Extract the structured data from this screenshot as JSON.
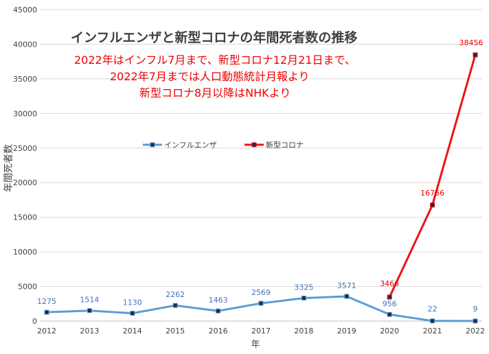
{
  "chart_data": {
    "type": "line",
    "title": "インフルエンザと新型コロナの年間死者数の推移",
    "notes": [
      "2022年はインフル7月まで、新型コロナ12月21日まで、",
      "2022年7月までは人口動態統計月報より",
      "新型コロナ8月以降はNHKより"
    ],
    "xlabel": "年",
    "ylabel": "年間死者数",
    "ylim": [
      0,
      45000
    ],
    "yticks": [
      0,
      5000,
      10000,
      15000,
      20000,
      25000,
      30000,
      35000,
      40000,
      45000
    ],
    "categories": [
      "2012",
      "2013",
      "2014",
      "2015",
      "2016",
      "2017",
      "2018",
      "2019",
      "2020",
      "2021",
      "2022"
    ],
    "grid": true,
    "legend_position": "upper-left-center",
    "series": [
      {
        "name": "インフルエンザ",
        "color": "#5b9bd5",
        "label_color": "#4472c4",
        "values": [
          1275,
          1514,
          1130,
          2262,
          1463,
          2569,
          3325,
          3571,
          956,
          22,
          9
        ]
      },
      {
        "name": "新型コロナ",
        "color": "#ee1111",
        "label_color": "#ee0000",
        "values": [
          null,
          null,
          null,
          null,
          null,
          null,
          null,
          null,
          3466,
          16766,
          38456
        ]
      }
    ]
  }
}
